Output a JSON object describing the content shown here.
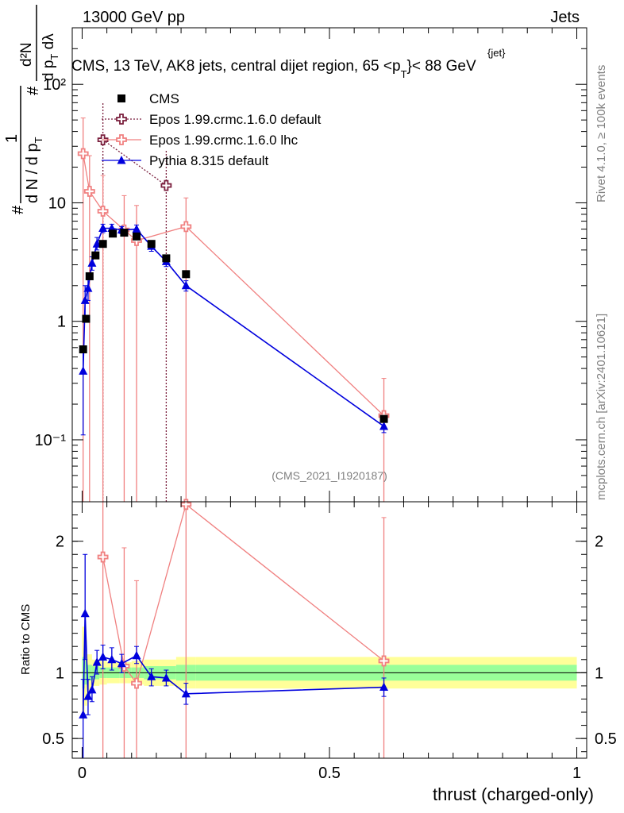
{
  "header": {
    "energy_label": "13000 GeV pp",
    "process_label": "Jets"
  },
  "side_text": {
    "rivet": "Rivet 4.1.0, ≥ 100k events",
    "mcplots": "mcplots.cern.ch [arXiv:2401.10621]"
  },
  "analysis_id": "(CMS_2021_I1920187)",
  "colors": {
    "cms": "#000000",
    "epos_default": "#7a1f3d",
    "epos_lhc": "#f08080",
    "pythia": "#0000dd",
    "band_inner": "#99ff99",
    "band_outer": "#ffff99"
  },
  "chart_data": [
    {
      "type": "scatter",
      "title": "CMS, 13 TeV, AK8 jets, central dijet region, 65 <p",
      "title_sup": "{jet}",
      "title_sub": "T",
      "title_end": "}< 88 GeV",
      "ylabel": {
        "num": "1",
        "den": "d N / d p",
        "den_sub": "T",
        "hash": "#",
        "right_num": "d²N",
        "right_den": "d p",
        "right_den_sub": "T",
        "right_den_end": " dλ"
      },
      "yscale": "log",
      "ylim": [
        0.03,
        300
      ],
      "y_ticks": [
        0.1,
        1,
        10,
        100
      ],
      "y_tick_labels": [
        "10⁻¹",
        "1",
        "10",
        "10²"
      ],
      "xlim": [
        -0.02,
        1.02
      ],
      "legend": [
        {
          "key": "cms",
          "label": "CMS",
          "marker": "square"
        },
        {
          "key": "epos_default",
          "label": "Epos 1.99.crmc.1.6.0 default",
          "marker": "cross"
        },
        {
          "key": "epos_lhc",
          "label": "Epos 1.99.crmc.1.6.0 lhc",
          "marker": "cross"
        },
        {
          "key": "pythia",
          "label": "Pythia 8.315 default",
          "marker": "triangle"
        }
      ],
      "legend_placement": "top-left",
      "series": [
        {
          "key": "cms",
          "name": "CMS",
          "x": [
            0.002,
            0.008,
            0.015,
            0.027,
            0.042,
            0.062,
            0.085,
            0.11,
            0.14,
            0.17,
            0.21,
            0.61
          ],
          "y": [
            0.58,
            1.05,
            2.4,
            3.6,
            4.5,
            5.5,
            5.6,
            5.2,
            4.5,
            3.4,
            2.5,
            0.15
          ]
        },
        {
          "key": "epos_default",
          "name": "Epos 1.99.crmc.1.6.0 default",
          "x": [
            0.042,
            0.17
          ],
          "y": [
            34,
            14
          ],
          "err_lo": [
            0.001,
            0.001
          ],
          "err_hi": [
            70,
            28
          ]
        },
        {
          "key": "epos_lhc",
          "name": "Epos 1.99.crmc.1.6.0 lhc",
          "x": [
            0.002,
            0.015,
            0.042,
            0.085,
            0.11,
            0.21,
            0.61
          ],
          "y": [
            26,
            12.5,
            8.5,
            5.9,
            4.8,
            6.3,
            0.16
          ],
          "err_lo": [
            0.001,
            0.001,
            0.001,
            0.001,
            0.001,
            0.001,
            0.001
          ],
          "err_hi": [
            52,
            25,
            17,
            11.5,
            9.5,
            11,
            0.33
          ]
        },
        {
          "key": "pythia",
          "name": "Pythia 8.315 default",
          "x": [
            0.002,
            0.006,
            0.012,
            0.02,
            0.03,
            0.042,
            0.06,
            0.08,
            0.11,
            0.14,
            0.17,
            0.21,
            0.61
          ],
          "y": [
            0.38,
            1.5,
            1.9,
            3.1,
            4.5,
            6.1,
            6.1,
            5.9,
            6.0,
            4.3,
            3.2,
            2.0,
            0.13
          ],
          "err_lo": [
            0.11,
            1.0,
            1.5,
            2.7,
            4.0,
            5.6,
            5.7,
            5.5,
            5.6,
            3.9,
            2.9,
            1.8,
            0.115
          ],
          "err_hi": [
            0.6,
            2.0,
            2.3,
            3.5,
            5.1,
            6.6,
            6.6,
            6.3,
            6.5,
            4.6,
            3.5,
            2.2,
            0.145
          ]
        }
      ]
    },
    {
      "type": "scatter",
      "ylabel": "Ratio to CMS",
      "xlabel": "thrust (charged-only)",
      "ylim": [
        0.35,
        2.3
      ],
      "y_ticks": [
        0.5,
        1,
        2
      ],
      "y_tick_labels": [
        "0.5",
        "1",
        "2"
      ],
      "x_ticks": [
        0,
        0.5,
        1
      ],
      "x_tick_labels": [
        "0",
        "0.5",
        "1"
      ],
      "band_edges": [
        0,
        0.005,
        0.01,
        0.02,
        0.035,
        0.05,
        0.075,
        0.1,
        0.125,
        0.155,
        0.19,
        0.23,
        1.0
      ],
      "band_inner": [
        0.12,
        0.09,
        0.06,
        0.05,
        0.04,
        0.04,
        0.04,
        0.04,
        0.05,
        0.05,
        0.06,
        0.06
      ],
      "band_outer": [
        0.35,
        0.25,
        0.14,
        0.1,
        0.09,
        0.08,
        0.08,
        0.09,
        0.1,
        0.1,
        0.12,
        0.12
      ],
      "series": [
        {
          "key": "epos_lhc",
          "x": [
            0.042,
            0.085,
            0.11,
            0.21,
            0.61
          ],
          "y": [
            1.88,
            1.05,
            0.92,
            2.28,
            1.09
          ],
          "err_lo": [
            0.3,
            0.3,
            0.3,
            0.3,
            0.3
          ],
          "err_hi": [
            2.5,
            1.95,
            1.7,
            2.5,
            2.18
          ]
        },
        {
          "key": "pythia",
          "x": [
            0.002,
            0.006,
            0.012,
            0.02,
            0.03,
            0.042,
            0.06,
            0.08,
            0.11,
            0.14,
            0.17,
            0.21,
            0.61
          ],
          "y": [
            0.68,
            1.45,
            0.82,
            0.87,
            1.08,
            1.12,
            1.1,
            1.07,
            1.13,
            0.97,
            0.96,
            0.84,
            0.89
          ],
          "err_lo": [
            0.3,
            1.1,
            0.68,
            0.78,
            0.99,
            1.03,
            1.02,
            1.0,
            1.07,
            0.9,
            0.9,
            0.76,
            0.82
          ],
          "err_hi": [
            0.95,
            1.9,
            0.95,
            0.97,
            1.17,
            1.21,
            1.19,
            1.14,
            1.2,
            1.03,
            1.02,
            0.92,
            0.96
          ]
        }
      ]
    }
  ]
}
